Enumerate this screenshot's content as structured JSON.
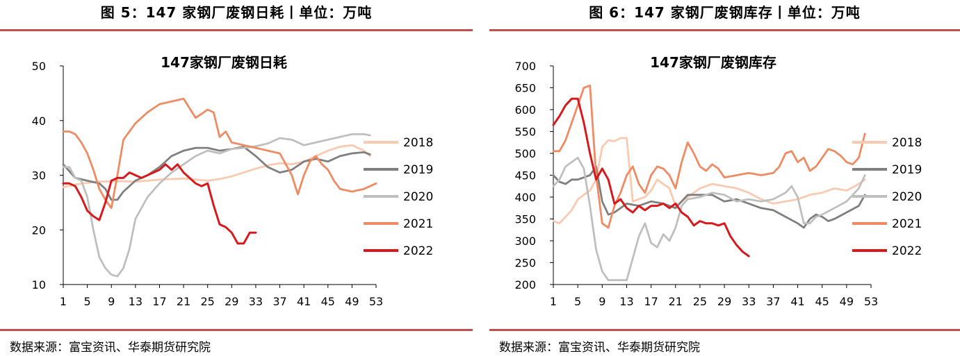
{
  "figures": [
    {
      "caption": "图 5：147 家钢厂废钢日耗丨单位：万吨",
      "source": "数据来源：富宝资讯、华泰期货研究院"
    },
    {
      "caption": "图 6：147 家钢厂废钢库存丨单位：万吨",
      "source": "数据来源：富宝资讯、华泰期货研究院"
    }
  ],
  "colors": {
    "2018": "#f9c9b0",
    "2019": "#7f7f7f",
    "2020": "#bfbfbf",
    "2021": "#ef8a62",
    "2022": "#d7191c",
    "rule": "#c0504d"
  },
  "chart_data": [
    {
      "type": "line",
      "title": "147家钢厂废钢日耗",
      "xlabel": "",
      "ylabel": "",
      "xticks": [
        1,
        5,
        9,
        13,
        17,
        21,
        25,
        29,
        33,
        37,
        41,
        45,
        49,
        53
      ],
      "yticks": [
        10,
        20,
        30,
        40,
        50
      ],
      "xlim": [
        1,
        53
      ],
      "ylim": [
        10,
        50
      ],
      "grid": false,
      "legend": "right",
      "series": [
        {
          "name": "2018",
          "x": [
            1,
            3,
            5,
            7,
            9,
            11,
            13,
            15,
            17,
            19,
            21,
            23,
            25,
            27,
            29,
            31,
            33,
            35,
            37,
            39,
            41,
            43,
            45,
            47,
            49,
            51,
            52
          ],
          "values": [
            27.8,
            28.3,
            28.6,
            28.8,
            28.9,
            28.9,
            28.8,
            29.0,
            29.2,
            29.3,
            29.4,
            29.2,
            29.0,
            29.3,
            29.8,
            30.5,
            31.2,
            31.8,
            32.2,
            32.0,
            32.5,
            33.5,
            34.5,
            35.2,
            35.5,
            34.5,
            33.5
          ]
        },
        {
          "name": "2019",
          "x": [
            1,
            3,
            5,
            7,
            8,
            9,
            10,
            11,
            13,
            15,
            17,
            19,
            21,
            23,
            25,
            27,
            29,
            31,
            33,
            35,
            37,
            39,
            41,
            43,
            45,
            47,
            49,
            51,
            52
          ],
          "values": [
            32.0,
            29.5,
            29.0,
            28.5,
            27.5,
            25.5,
            25.5,
            27.0,
            29.0,
            30.0,
            31.5,
            33.5,
            34.5,
            35.0,
            35.0,
            34.5,
            34.8,
            35.2,
            33.5,
            31.5,
            30.5,
            31.0,
            32.5,
            33.0,
            32.5,
            33.5,
            34.0,
            34.2,
            33.8
          ]
        },
        {
          "name": "2020",
          "x": [
            1,
            2,
            3,
            4,
            5,
            6,
            7,
            8,
            9,
            10,
            11,
            12,
            13,
            15,
            17,
            19,
            21,
            23,
            25,
            27,
            29,
            31,
            33,
            35,
            37,
            39,
            41,
            43,
            45,
            47,
            49,
            51,
            52
          ],
          "values": [
            31.5,
            31.5,
            29.5,
            29.0,
            26.0,
            20.0,
            15.0,
            13.0,
            11.8,
            11.5,
            13.0,
            16.5,
            22.0,
            26.0,
            28.5,
            30.5,
            32.0,
            33.5,
            34.5,
            34.0,
            34.8,
            35.0,
            35.3,
            35.8,
            36.8,
            36.5,
            35.5,
            36.0,
            36.5,
            37.0,
            37.5,
            37.5,
            37.3
          ]
        },
        {
          "name": "2021",
          "x": [
            1,
            2,
            3,
            4,
            5,
            6,
            7,
            8,
            9,
            10,
            11,
            13,
            15,
            17,
            19,
            21,
            23,
            25,
            26,
            27,
            28,
            29,
            31,
            33,
            35,
            37,
            39,
            40,
            41,
            42,
            43,
            44,
            45,
            46,
            47,
            49,
            51,
            53
          ],
          "values": [
            38.0,
            38.0,
            37.5,
            36.0,
            34.0,
            31.0,
            27.5,
            25.5,
            24.0,
            30.0,
            36.5,
            39.5,
            41.5,
            43.0,
            43.5,
            44.0,
            40.5,
            42.0,
            41.5,
            37.0,
            38.0,
            36.0,
            35.5,
            35.0,
            34.5,
            34.0,
            30.0,
            26.5,
            30.0,
            32.5,
            33.5,
            32.0,
            31.0,
            29.0,
            27.5,
            27.0,
            27.5,
            28.5
          ]
        },
        {
          "name": "2022",
          "x": [
            1,
            2,
            3,
            4,
            5,
            6,
            7,
            8,
            9,
            10,
            11,
            12,
            13,
            14,
            15,
            16,
            17,
            18,
            19,
            20,
            21,
            22,
            23,
            24,
            25,
            26,
            27,
            28,
            29,
            30,
            31,
            32,
            33
          ],
          "values": [
            28.5,
            28.5,
            28.0,
            26.0,
            23.5,
            22.5,
            21.8,
            25.0,
            29.0,
            29.5,
            29.5,
            30.5,
            30.0,
            29.5,
            30.0,
            30.5,
            31.0,
            32.0,
            31.0,
            32.0,
            30.5,
            29.5,
            28.5,
            28.0,
            28.5,
            24.5,
            21.0,
            20.5,
            19.5,
            17.5,
            17.5,
            19.5,
            19.5
          ]
        }
      ]
    },
    {
      "type": "line",
      "title": "147家钢厂废钢库存",
      "xlabel": "",
      "ylabel": "",
      "xticks": [
        1,
        5,
        9,
        13,
        17,
        21,
        25,
        29,
        33,
        37,
        41,
        45,
        49,
        53
      ],
      "yticks": [
        200,
        250,
        300,
        350,
        400,
        450,
        500,
        550,
        600,
        650,
        700
      ],
      "xlim": [
        1,
        53
      ],
      "ylim": [
        200,
        700
      ],
      "grid": false,
      "legend": "right",
      "series": [
        {
          "name": "2018",
          "x": [
            1,
            2,
            3,
            4,
            5,
            6,
            7,
            8,
            9,
            10,
            11,
            12,
            13,
            14,
            15,
            16,
            17,
            18,
            19,
            20,
            21,
            23,
            25,
            27,
            29,
            31,
            33,
            35,
            37,
            39,
            41,
            43,
            45,
            47,
            49,
            51,
            52
          ],
          "values": [
            345,
            340,
            355,
            370,
            395,
            405,
            415,
            440,
            515,
            530,
            528,
            535,
            535,
            390,
            395,
            400,
            415,
            440,
            430,
            420,
            380,
            400,
            420,
            430,
            425,
            420,
            410,
            395,
            385,
            390,
            395,
            405,
            410,
            420,
            415,
            430,
            440
          ]
        },
        {
          "name": "2019",
          "x": [
            1,
            2,
            3,
            4,
            5,
            6,
            7,
            8,
            9,
            10,
            11,
            12,
            13,
            15,
            17,
            19,
            21,
            23,
            25,
            27,
            29,
            31,
            33,
            35,
            37,
            39,
            41,
            42,
            43,
            44,
            45,
            46,
            47,
            49,
            51,
            52
          ],
          "values": [
            450,
            435,
            430,
            440,
            440,
            445,
            450,
            470,
            390,
            360,
            365,
            375,
            385,
            380,
            390,
            385,
            375,
            405,
            405,
            405,
            390,
            395,
            385,
            375,
            370,
            355,
            340,
            330,
            350,
            360,
            355,
            345,
            350,
            365,
            380,
            405
          ]
        },
        {
          "name": "2020",
          "x": [
            1,
            2,
            3,
            4,
            5,
            6,
            7,
            8,
            9,
            10,
            11,
            12,
            13,
            14,
            15,
            16,
            17,
            18,
            19,
            20,
            21,
            22,
            23,
            25,
            27,
            29,
            31,
            33,
            35,
            37,
            39,
            40,
            41,
            42,
            43,
            44,
            45,
            47,
            49,
            51,
            52
          ],
          "values": [
            425,
            440,
            470,
            480,
            490,
            465,
            380,
            280,
            230,
            210,
            210,
            210,
            210,
            260,
            310,
            340,
            295,
            285,
            315,
            300,
            330,
            380,
            395,
            400,
            410,
            405,
            390,
            395,
            390,
            395,
            410,
            425,
            400,
            340,
            340,
            355,
            360,
            375,
            390,
            420,
            450
          ]
        },
        {
          "name": "2021",
          "x": [
            1,
            2,
            3,
            4,
            5,
            6,
            7,
            8,
            9,
            10,
            11,
            12,
            13,
            14,
            15,
            16,
            17,
            18,
            19,
            20,
            21,
            22,
            23,
            24,
            25,
            26,
            27,
            28,
            29,
            31,
            33,
            35,
            37,
            38,
            39,
            40,
            41,
            42,
            43,
            44,
            45,
            46,
            47,
            48,
            49,
            50,
            51,
            52
          ],
          "values": [
            505,
            505,
            530,
            570,
            610,
            650,
            655,
            450,
            340,
            330,
            380,
            410,
            450,
            470,
            430,
            410,
            450,
            470,
            465,
            450,
            420,
            480,
            525,
            500,
            470,
            460,
            475,
            465,
            445,
            450,
            455,
            450,
            455,
            470,
            500,
            505,
            480,
            490,
            460,
            470,
            490,
            510,
            505,
            495,
            480,
            475,
            490,
            545
          ]
        },
        {
          "name": "2022",
          "x": [
            1,
            2,
            3,
            4,
            5,
            6,
            7,
            8,
            9,
            10,
            11,
            12,
            13,
            14,
            15,
            16,
            17,
            18,
            19,
            20,
            21,
            22,
            23,
            24,
            25,
            26,
            27,
            28,
            29,
            30,
            31,
            32,
            33
          ],
          "values": [
            565,
            585,
            610,
            625,
            625,
            570,
            500,
            440,
            465,
            440,
            385,
            395,
            375,
            365,
            380,
            370,
            380,
            380,
            385,
            375,
            385,
            365,
            355,
            335,
            345,
            340,
            340,
            335,
            340,
            310,
            290,
            275,
            265
          ]
        }
      ]
    }
  ]
}
